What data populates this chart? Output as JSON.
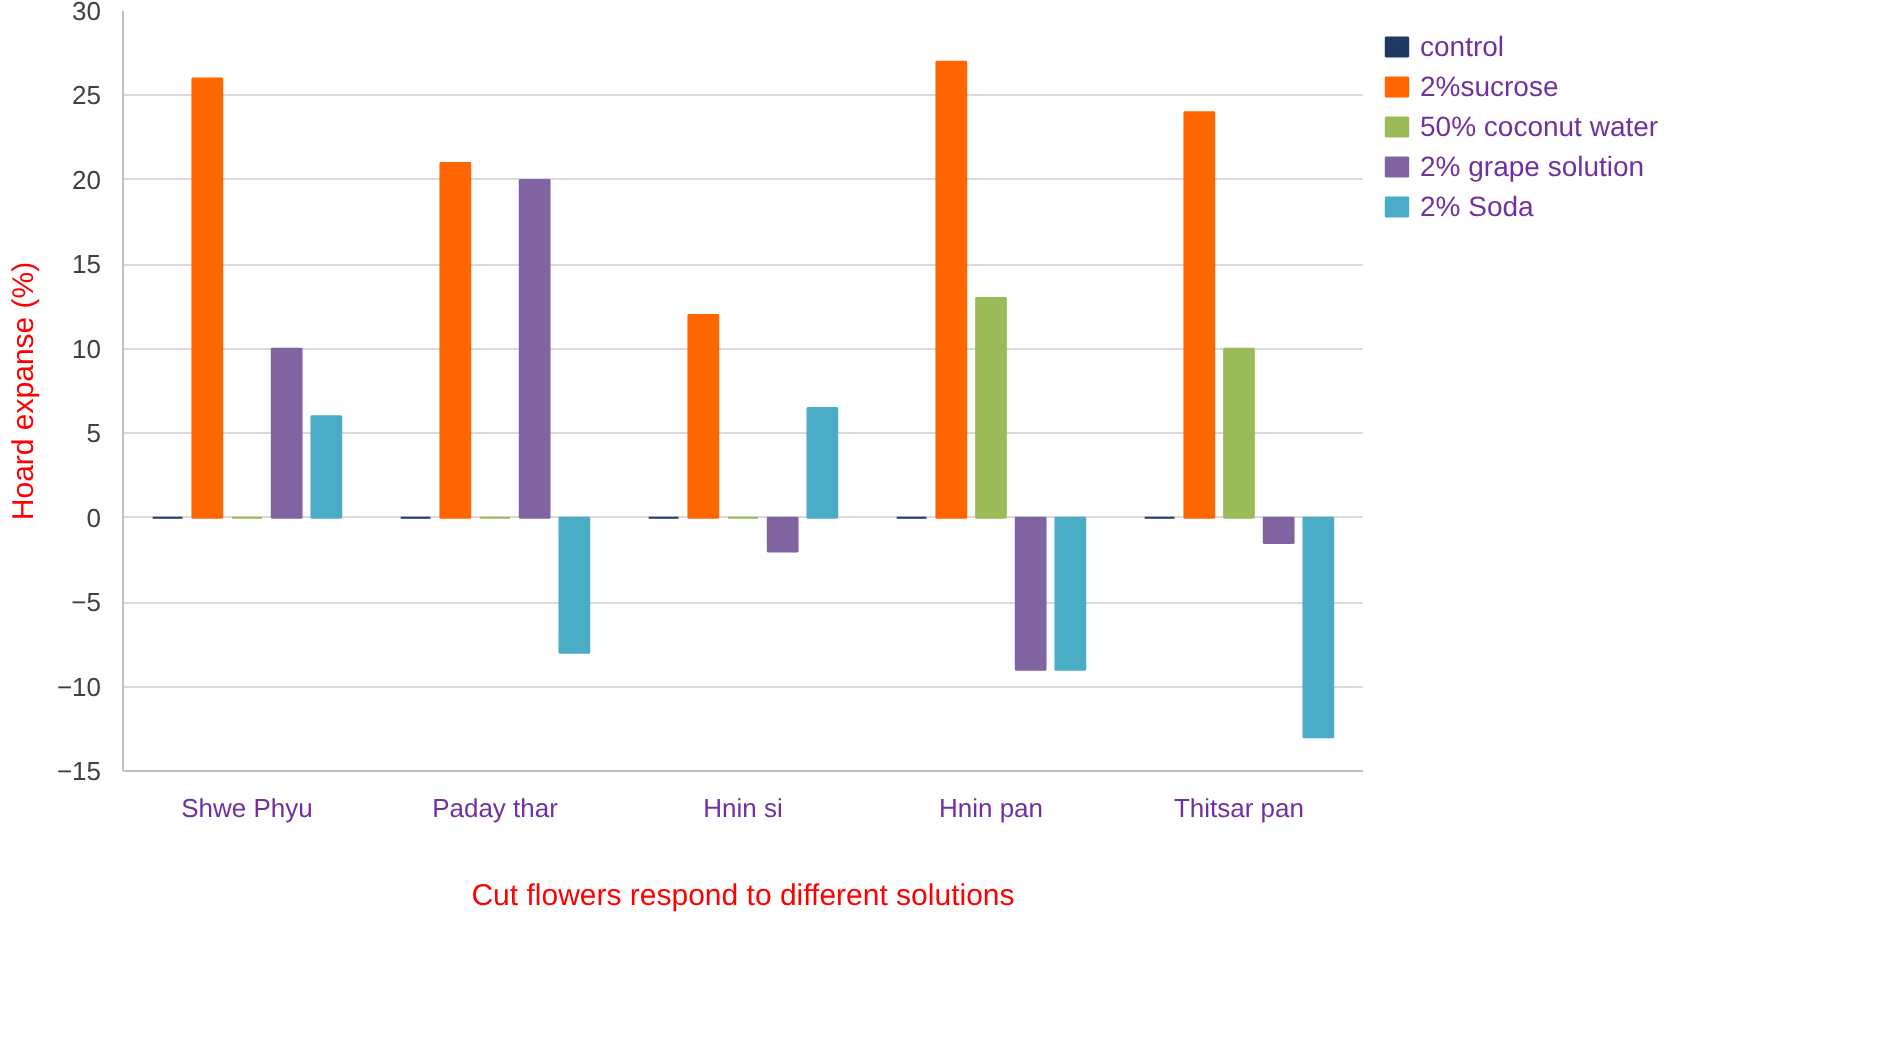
{
  "chart_data": {
    "type": "bar",
    "xlabel": "Cut flowers respond to different solutions",
    "ylabel": "Hoard expanse (%)",
    "categories": [
      "Shwe Phyu",
      "Paday thar",
      "Hnin si",
      "Hnin pan",
      "Thitsar pan"
    ],
    "series": [
      {
        "name": "control",
        "color": "#1f3864",
        "values": [
          0,
          0,
          0,
          0,
          0
        ]
      },
      {
        "name": "2%sucrose",
        "color": "#ff6600",
        "values": [
          26,
          21,
          12,
          27,
          24
        ]
      },
      {
        "name": "50% coconut water",
        "color": "#9bbb59",
        "values": [
          0,
          0,
          0,
          13,
          10
        ]
      },
      {
        "name": "2% grape solution",
        "color": "#8064a2",
        "values": [
          10,
          20,
          -2,
          -9,
          -1.5
        ]
      },
      {
        "name": "2% Soda",
        "color": "#4bacc6",
        "values": [
          6,
          -8,
          6.5,
          -9,
          -13
        ]
      }
    ],
    "ylim": [
      -15,
      30
    ],
    "yticks": [
      -15,
      -10,
      -5,
      0,
      5,
      10,
      15,
      20,
      25,
      30
    ],
    "grid": "y",
    "legend": "right"
  }
}
